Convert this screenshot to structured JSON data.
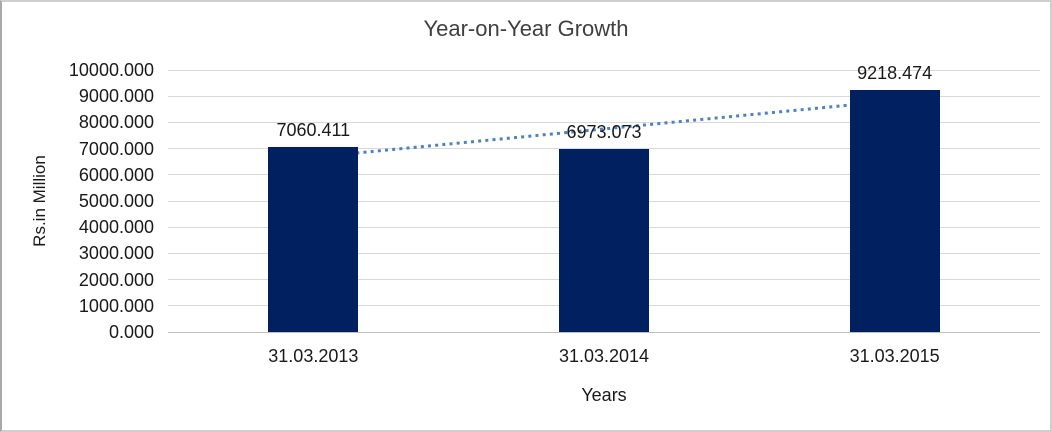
{
  "chart_data": {
    "type": "bar",
    "title": "Year-on-Year Growth",
    "xlabel": "Years",
    "ylabel": "Rs.in Million",
    "categories": [
      "31.03.2013",
      "31.03.2014",
      "31.03.2015"
    ],
    "values": [
      7060.411,
      6973.073,
      9218.474
    ],
    "data_labels": [
      "7060.411",
      "6973.073",
      "9218.474"
    ],
    "ylim": [
      0,
      10000
    ],
    "ytick_step": 1000,
    "ytick_labels": [
      "0.000",
      "1000.000",
      "2000.000",
      "3000.000",
      "4000.000",
      "5000.000",
      "6000.000",
      "7000.000",
      "8000.000",
      "9000.000",
      "10000.000"
    ],
    "grid": true,
    "legend_position": "none",
    "bar_color": "#002060",
    "gridline_color": "#d9d9d9",
    "trendline": {
      "type": "linear",
      "style": "dotted",
      "color": "#4F81BD"
    }
  }
}
